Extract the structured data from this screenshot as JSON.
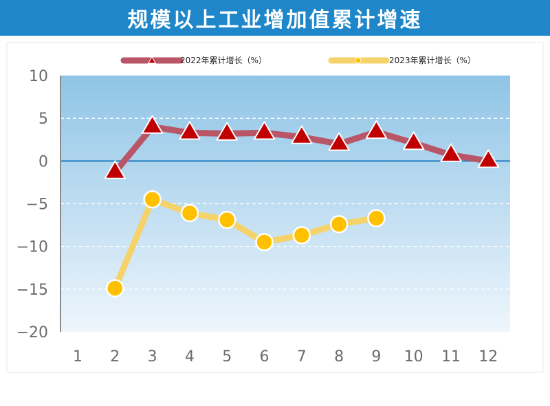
{
  "title": "规模以上工业增加值累计增速",
  "colors": {
    "title_bg": "#1f87c9",
    "title_text": "#ffffff",
    "plot_bg_top": "#8fc4e6",
    "plot_bg_bottom": "#eef6fc",
    "zero_line": "#1f7cc0",
    "series_2022_line": "#b85566",
    "series_2022_marker": "#c00000",
    "series_2023_line": "#f5d36a",
    "series_2023_marker": "#ffc000",
    "tick_label": "#6b6b6b"
  },
  "chart_data": {
    "type": "line",
    "title": "规模以上工业增加值累计增速",
    "x": [
      1,
      2,
      3,
      4,
      5,
      6,
      7,
      8,
      9,
      10,
      11,
      12
    ],
    "x_tick_labels": [
      "1",
      "2",
      "3",
      "4",
      "5",
      "6",
      "7",
      "8",
      "9",
      "10",
      "11",
      "12"
    ],
    "ylim": [
      -20,
      10
    ],
    "y_ticks": [
      10,
      5,
      0,
      -5,
      -10,
      -15,
      -20
    ],
    "y_tick_labels": [
      "10",
      "5",
      "0",
      "−5",
      "−10",
      "−15",
      "−20"
    ],
    "grid": "dashed horizontal",
    "legend_position": "top",
    "series": [
      {
        "name": "2022年累计增长（%）",
        "marker": "triangle",
        "x": [
          2,
          3,
          4,
          5,
          6,
          7,
          8,
          9,
          10,
          11,
          12
        ],
        "values": [
          -1.3,
          4.0,
          3.3,
          3.2,
          3.3,
          2.8,
          2.0,
          3.4,
          2.1,
          0.7,
          0.0
        ]
      },
      {
        "name": "2023年累计增长（%）",
        "marker": "circle",
        "x": [
          2,
          3,
          4,
          5,
          6,
          7,
          8,
          9
        ],
        "values": [
          -14.9,
          -4.5,
          -6.1,
          -6.9,
          -9.5,
          -8.7,
          -7.4,
          -6.7
        ]
      }
    ]
  }
}
